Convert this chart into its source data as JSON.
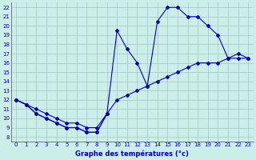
{
  "xlabel": "Graphe des températures (°c)",
  "xlim": [
    -0.5,
    23.5
  ],
  "ylim": [
    7.5,
    22.5
  ],
  "yticks": [
    8,
    9,
    10,
    11,
    12,
    13,
    14,
    15,
    16,
    17,
    18,
    19,
    20,
    21,
    22
  ],
  "xticks": [
    0,
    1,
    2,
    3,
    4,
    5,
    6,
    7,
    8,
    9,
    10,
    11,
    12,
    13,
    14,
    15,
    16,
    17,
    18,
    19,
    20,
    21,
    22,
    23
  ],
  "bg_color": "#cceee8",
  "grid_color": "#aacccc",
  "line_color": "#0000bb",
  "series": [
    {
      "x": [
        0,
        1,
        2,
        3,
        4,
        5,
        6,
        7,
        8,
        9
      ],
      "y": [
        12,
        11.5,
        10.5,
        10,
        9.5,
        9,
        9,
        8.5,
        8.5,
        10.5
      ]
    },
    {
      "x": [
        0,
        1,
        2,
        3,
        4,
        5,
        6,
        7,
        8,
        9,
        10,
        11,
        12,
        13,
        14,
        15,
        16,
        17,
        18,
        19,
        20,
        21,
        22,
        23
      ],
      "y": [
        12,
        11.5,
        11,
        10.5,
        10,
        9.5,
        9.5,
        9,
        9,
        10.5,
        12,
        12.5,
        13,
        13.5,
        14,
        14.5,
        15,
        15.5,
        16,
        16,
        16,
        16.5,
        16.5,
        16.5
      ]
    },
    {
      "x": [
        0,
        1,
        2,
        3,
        4,
        5,
        6,
        7,
        8,
        9,
        10,
        11,
        12,
        13,
        14,
        15,
        16,
        17,
        18,
        19,
        20,
        21,
        22,
        23
      ],
      "y": [
        12,
        11.5,
        10.5,
        10,
        9.5,
        9,
        9,
        8.5,
        8.5,
        10.5,
        19.5,
        17.5,
        16,
        13.5,
        20.5,
        22,
        22,
        21,
        21,
        20,
        19,
        16.5,
        17,
        16.5
      ]
    }
  ]
}
